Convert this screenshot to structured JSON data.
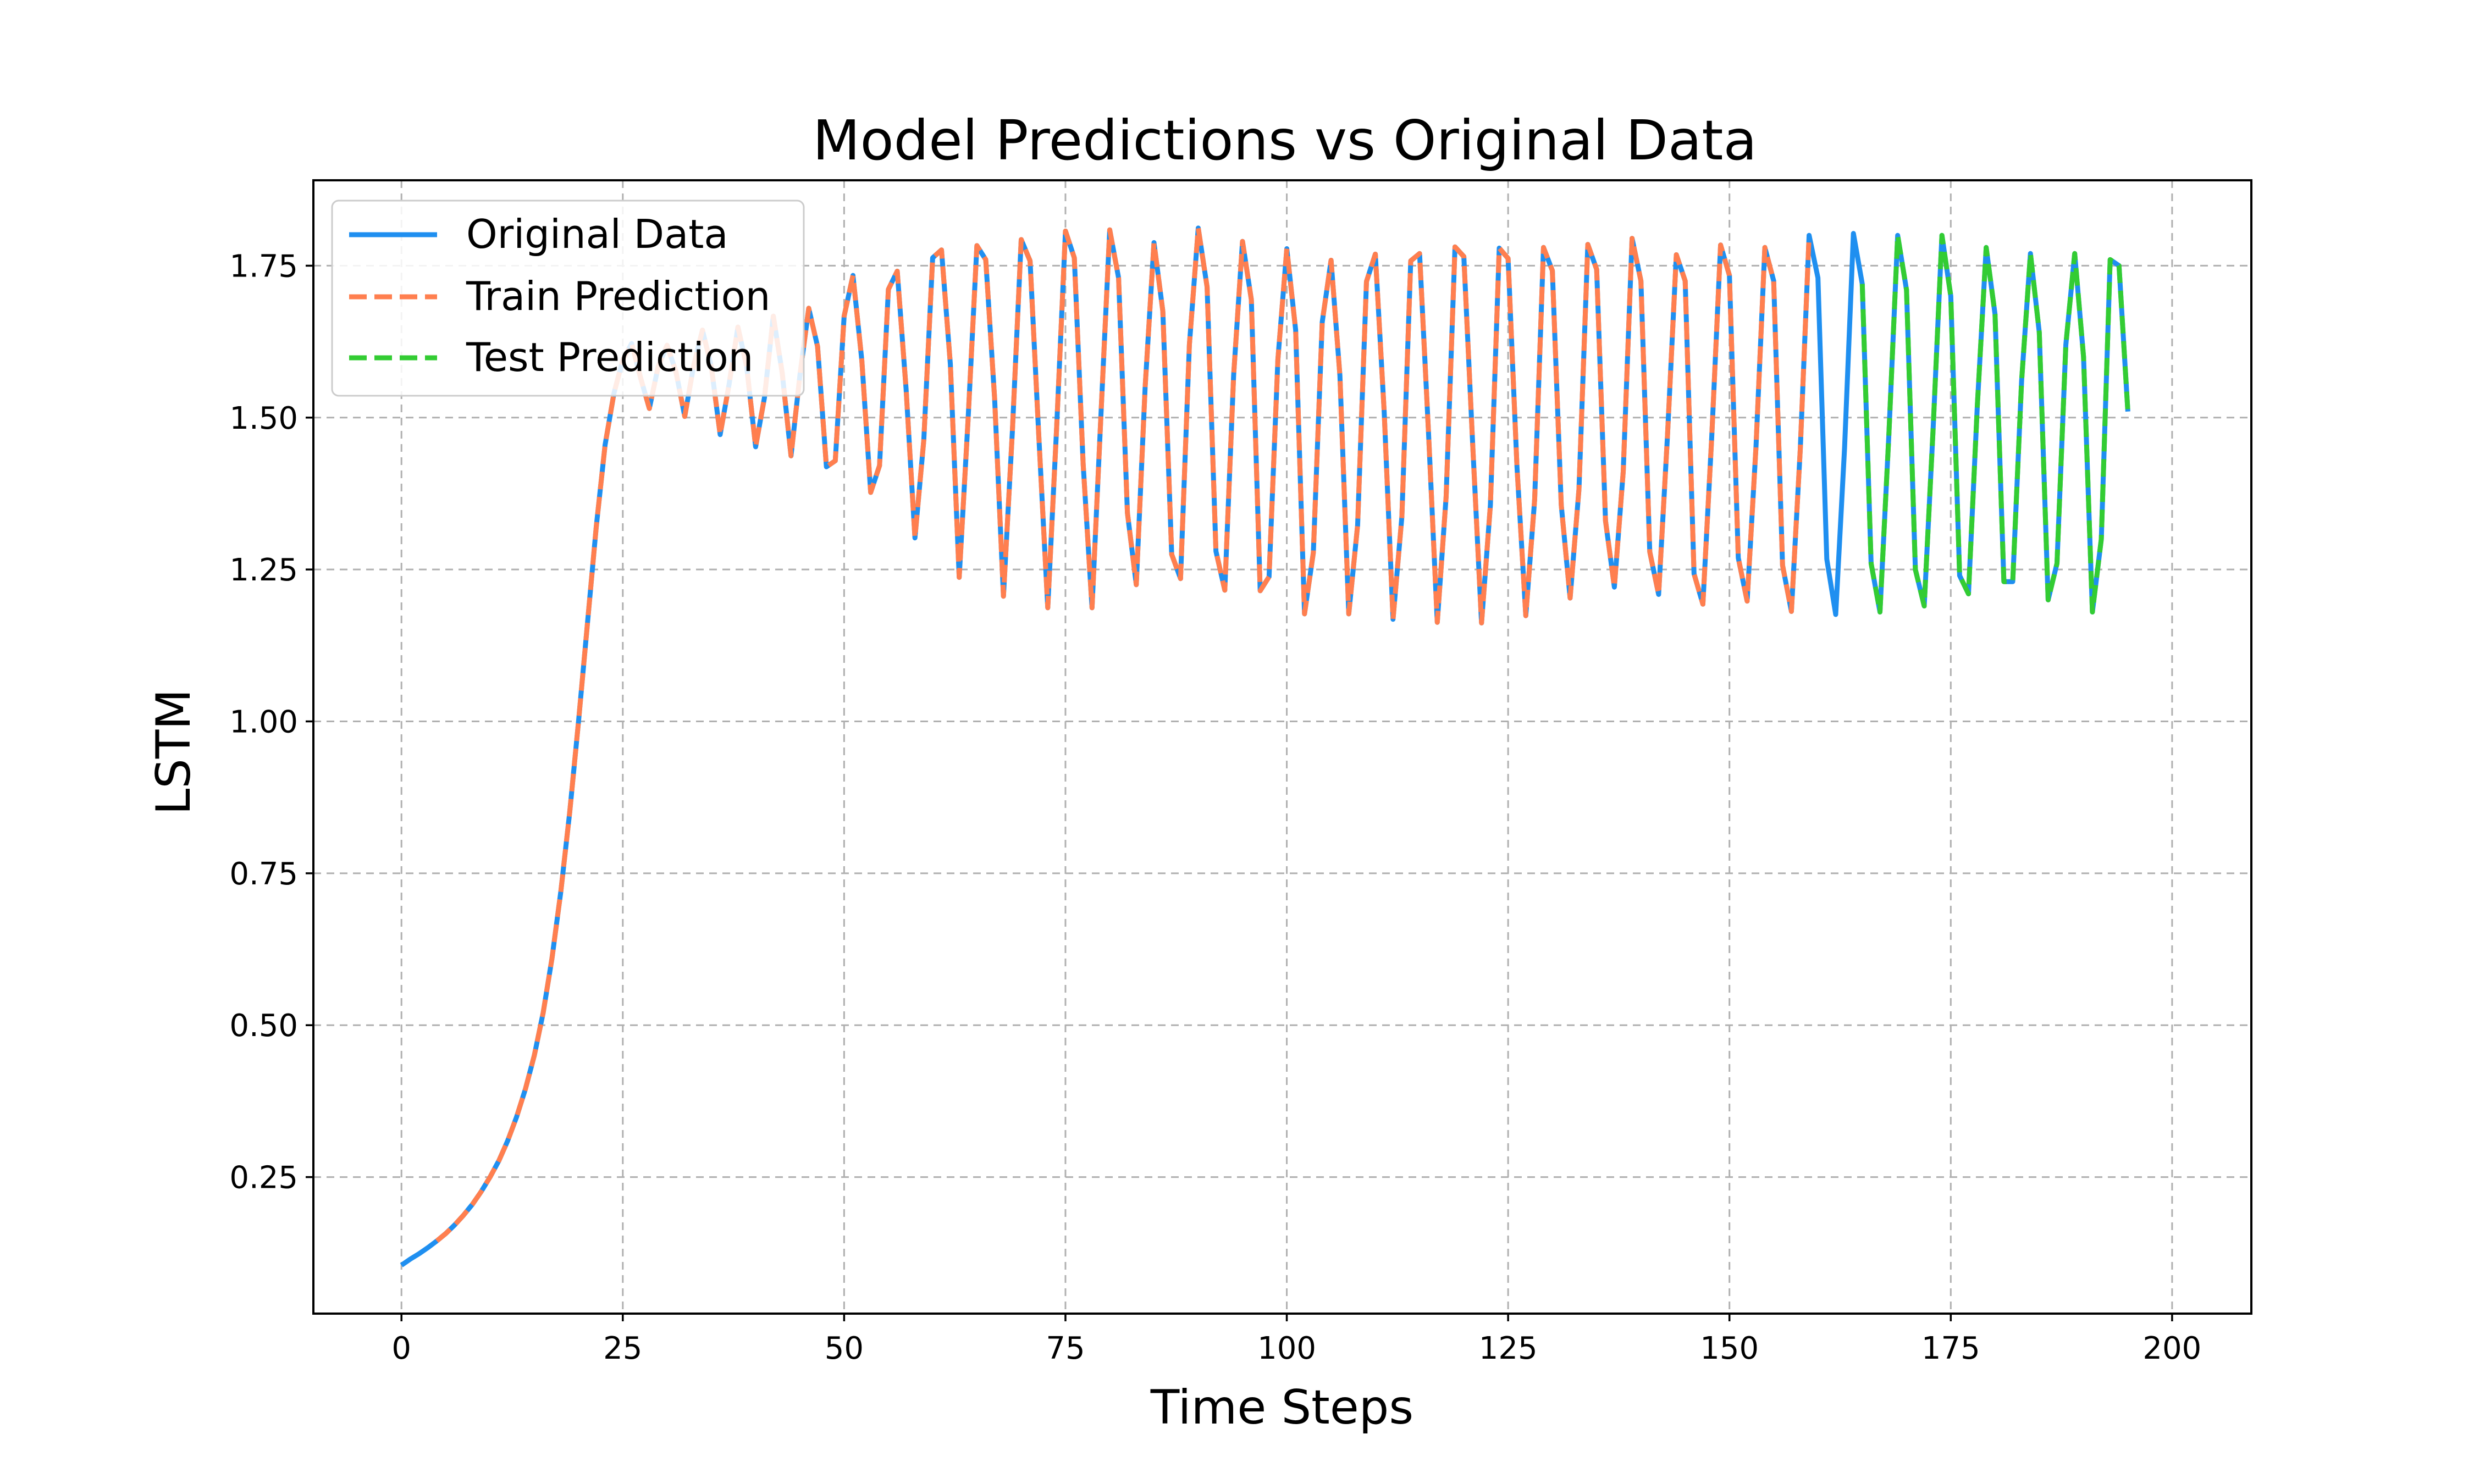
{
  "chart_data": {
    "type": "line",
    "title": "Model Predictions vs Original Data",
    "xlabel": "Time Steps",
    "ylabel": "LSTM",
    "xlim": [
      -9.95,
      208.95
    ],
    "ylim": [
      0.0253,
      1.8906
    ],
    "xticks": [
      0,
      25,
      50,
      75,
      100,
      125,
      150,
      175,
      200
    ],
    "xtick_labels": [
      "0",
      "25",
      "50",
      "75",
      "100",
      "125",
      "150",
      "175",
      "200"
    ],
    "yticks": [
      0.25,
      0.5,
      0.75,
      1.0,
      1.25,
      1.5,
      1.75
    ],
    "ytick_labels": [
      "0.25",
      "0.50",
      "0.75",
      "1.00",
      "1.25",
      "1.50",
      "1.75"
    ],
    "grid": true,
    "legend_position": "upper-left",
    "series": [
      {
        "name": "Original Data",
        "color": "#1f8ff0",
        "style": "solid",
        "x_start": 0,
        "values": [
          0.105,
          0.115,
          0.124,
          0.134,
          0.145,
          0.157,
          0.171,
          0.187,
          0.205,
          0.226,
          0.25,
          0.277,
          0.31,
          0.349,
          0.395,
          0.45,
          0.52,
          0.61,
          0.72,
          0.85,
          1.0,
          1.16,
          1.32,
          1.455,
          1.54,
          1.595,
          1.622,
          1.566,
          1.515,
          1.584,
          1.619,
          1.576,
          1.502,
          1.585,
          1.644,
          1.584,
          1.472,
          1.554,
          1.649,
          1.583,
          1.452,
          1.533,
          1.667,
          1.574,
          1.437,
          1.569,
          1.68,
          1.617,
          1.419,
          1.429,
          1.667,
          1.734,
          1.594,
          1.377,
          1.421,
          1.711,
          1.741,
          1.547,
          1.302,
          1.463,
          1.763,
          1.776,
          1.588,
          1.237,
          1.496,
          1.783,
          1.76,
          1.532,
          1.206,
          1.477,
          1.793,
          1.758,
          1.466,
          1.187,
          1.483,
          1.807,
          1.763,
          1.423,
          1.187,
          1.502,
          1.809,
          1.73,
          1.343,
          1.225,
          1.55,
          1.788,
          1.675,
          1.275,
          1.235,
          1.62,
          1.812,
          1.715,
          1.28,
          1.216,
          1.57,
          1.79,
          1.694,
          1.215,
          1.238,
          1.596,
          1.778,
          1.644,
          1.177,
          1.278,
          1.657,
          1.759,
          1.569,
          1.177,
          1.323,
          1.724,
          1.769,
          1.51,
          1.168,
          1.337,
          1.758,
          1.77,
          1.478,
          1.163,
          1.37,
          1.781,
          1.765,
          1.456,
          1.162,
          1.356,
          1.779,
          1.762,
          1.42,
          1.174,
          1.365,
          1.78,
          1.742,
          1.356,
          1.203,
          1.382,
          1.785,
          1.744,
          1.33,
          1.221,
          1.411,
          1.795,
          1.725,
          1.279,
          1.209,
          1.47,
          1.768,
          1.725,
          1.243,
          1.193,
          1.468,
          1.784,
          1.734,
          1.269,
          1.198,
          1.452,
          1.78,
          1.725,
          1.257,
          1.181,
          1.447,
          1.8,
          1.73,
          1.267,
          1.176,
          1.45,
          1.803,
          1.72,
          1.26,
          1.18,
          1.47,
          1.8,
          1.71,
          1.25,
          1.19,
          1.48,
          1.8,
          1.7,
          1.24,
          1.21,
          1.52,
          1.78,
          1.67,
          1.23,
          1.23,
          1.56,
          1.77,
          1.64,
          1.2,
          1.26,
          1.62,
          1.77,
          1.6,
          1.18,
          1.3,
          1.76,
          1.75,
          1.51
        ]
      },
      {
        "name": "Train Prediction",
        "color": "#ff7f4f",
        "style": "dashed",
        "x_start": 4,
        "x_end": 159
      },
      {
        "name": "Test Prediction",
        "color": "#33cc33",
        "style": "dashed",
        "x_start": 165,
        "x_end": 199
      }
    ]
  }
}
